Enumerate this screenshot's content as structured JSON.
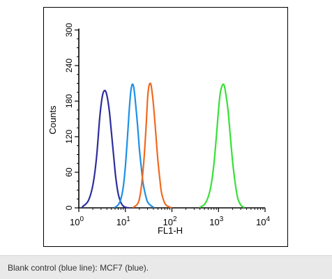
{
  "caption": "Blank control (blue line): MCF7 (blue).",
  "chart_data": {
    "type": "line",
    "xlabel": "FL1-H",
    "ylabel": "Counts",
    "xscale": "log",
    "xlim": [
      1,
      10000
    ],
    "ylim": [
      0,
      300
    ],
    "grid": false,
    "x_ticks": [
      {
        "value": 1,
        "base": "10",
        "exp": "0"
      },
      {
        "value": 10,
        "base": "10",
        "exp": "1"
      },
      {
        "value": 100,
        "base": "10",
        "exp": "2"
      },
      {
        "value": 1000,
        "base": "10",
        "exp": "3"
      },
      {
        "value": 10000,
        "base": "10",
        "exp": "4"
      }
    ],
    "y_ticks": [
      "0",
      "60",
      "120",
      "180",
      "240",
      "300"
    ],
    "series": [
      {
        "color": "#2d2d9e",
        "x": [
          1.2,
          1.6,
          2.0,
          2.4,
          2.8,
          3.2,
          3.6,
          4.0,
          4.5,
          5.0,
          5.6,
          6.2,
          7.0,
          8.0,
          9.0,
          10.0,
          12.0
        ],
        "y": [
          2,
          12,
          38,
          85,
          150,
          188,
          198,
          190,
          165,
          128,
          88,
          52,
          24,
          9,
          3,
          1,
          0
        ]
      },
      {
        "color": "#1e90e6",
        "x": [
          6,
          7,
          8,
          9,
          10,
          11,
          12,
          13,
          14,
          15,
          16,
          18,
          20,
          22,
          24,
          27,
          30,
          35,
          40
        ],
        "y": [
          1,
          5,
          15,
          35,
          70,
          115,
          160,
          195,
          208,
          205,
          188,
          145,
          100,
          68,
          42,
          22,
          10,
          4,
          1
        ]
      },
      {
        "color": "#f06a1e",
        "x": [
          15,
          18,
          20,
          22,
          25,
          28,
          30,
          32,
          34,
          36,
          40,
          45,
          50,
          55,
          60,
          70,
          80,
          100
        ],
        "y": [
          1,
          6,
          15,
          35,
          80,
          140,
          185,
          205,
          210,
          205,
          175,
          125,
          80,
          48,
          25,
          8,
          3,
          0
        ]
      },
      {
        "color": "#38e038",
        "x": [
          400,
          500,
          600,
          700,
          800,
          900,
          1000,
          1100,
          1200,
          1300,
          1400,
          1600,
          1800,
          2000,
          2300,
          2600,
          3000,
          3500
        ],
        "y": [
          1,
          6,
          18,
          40,
          75,
          120,
          165,
          195,
          206,
          208,
          198,
          165,
          120,
          80,
          40,
          16,
          5,
          1
        ]
      }
    ]
  }
}
